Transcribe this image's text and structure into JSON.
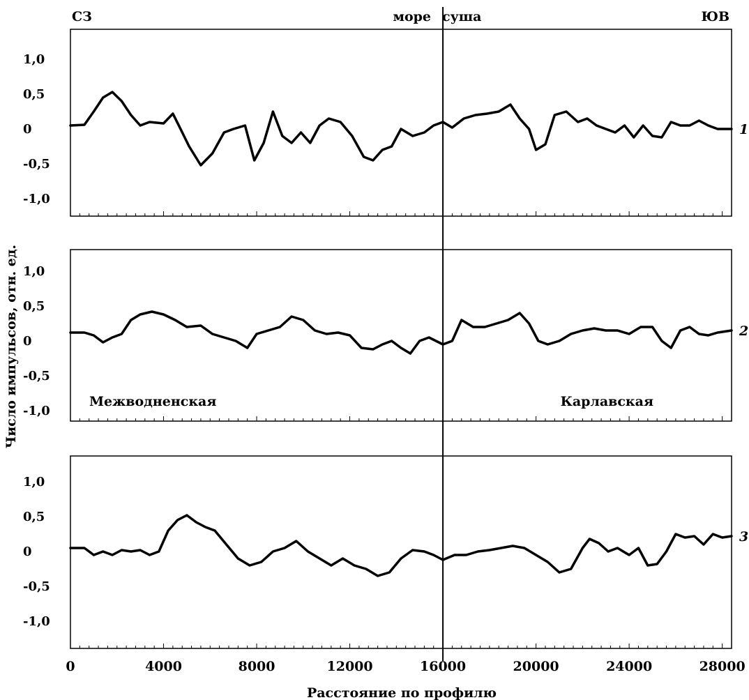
{
  "chart_data": {
    "type": "line",
    "ylabel": "Число импульсов, отн. ед.",
    "xlabel": "Расстояние по профилю",
    "xlim": [
      0,
      28400
    ],
    "x_ticks": [
      0,
      4000,
      8000,
      12000,
      16000,
      20000,
      24000,
      28000
    ],
    "x_tick_labels": [
      "0",
      "4000",
      "8000",
      "12000",
      "16000",
      "20000",
      "24000",
      "28000"
    ],
    "ylim": [
      -1.25,
      1.5
    ],
    "y_ticks": [
      1.0,
      0.5,
      0,
      -0.5,
      -1.0
    ],
    "y_tick_labels": [
      "1,0",
      "0,5",
      "0",
      "-0,5",
      "-1,0"
    ],
    "divider_x": 16000,
    "top_labels": {
      "left": "СЗ",
      "sea": "море",
      "land": "суша",
      "right": "ЮВ"
    },
    "panels": [
      {
        "series_label": "1",
        "annotations": [],
        "x": [
          0,
          600,
          1000,
          1400,
          1800,
          2200,
          2600,
          3000,
          3400,
          4000,
          4400,
          4700,
          5100,
          5600,
          6100,
          6600,
          7000,
          7500,
          7900,
          8300,
          8700,
          9100,
          9500,
          9900,
          10300,
          10700,
          11100,
          11600,
          12100,
          12600,
          13000,
          13400,
          13800,
          14200,
          14700,
          15200,
          15600,
          16000,
          16400,
          16900,
          17400,
          17900,
          18400,
          18900,
          19300,
          19700,
          20000,
          20400,
          20800,
          21300,
          21800,
          22200,
          22600,
          23000,
          23400,
          23800,
          24200,
          24600,
          25000,
          25400,
          25800,
          26200,
          26600,
          27000,
          27400,
          27800,
          28400
        ],
        "y": [
          0.05,
          0.06,
          0.25,
          0.45,
          0.53,
          0.4,
          0.2,
          0.05,
          0.1,
          0.08,
          0.22,
          0.02,
          -0.25,
          -0.52,
          -0.35,
          -0.05,
          0.0,
          0.05,
          -0.45,
          -0.2,
          0.25,
          -0.1,
          -0.2,
          -0.05,
          -0.2,
          0.05,
          0.15,
          0.1,
          -0.1,
          -0.4,
          -0.45,
          -0.3,
          -0.25,
          0.0,
          -0.1,
          -0.05,
          0.05,
          0.1,
          0.02,
          0.15,
          0.2,
          0.22,
          0.25,
          0.35,
          0.15,
          0.0,
          -0.3,
          -0.22,
          0.2,
          0.25,
          0.1,
          0.15,
          0.05,
          0.0,
          -0.05,
          0.05,
          -0.12,
          0.05,
          -0.1,
          -0.12,
          0.1,
          0.05,
          0.05,
          0.12,
          0.05,
          0.0,
          0.0
        ]
      },
      {
        "series_label": "2",
        "annotations": [
          "Межводненская",
          "Карлавская"
        ],
        "x": [
          0,
          600,
          1000,
          1400,
          1800,
          2200,
          2600,
          3000,
          3500,
          4000,
          4500,
          5000,
          5600,
          6100,
          6600,
          7100,
          7600,
          8000,
          8500,
          9000,
          9500,
          10000,
          10500,
          11000,
          11500,
          12000,
          12500,
          13000,
          13400,
          13800,
          14200,
          14600,
          15000,
          15400,
          16000,
          16400,
          16800,
          17300,
          17800,
          18300,
          18800,
          19300,
          19700,
          20100,
          20500,
          21000,
          21500,
          22000,
          22500,
          23000,
          23500,
          24000,
          24500,
          25000,
          25400,
          25800,
          26200,
          26600,
          27000,
          27400,
          27800,
          28400
        ],
        "y": [
          0.12,
          0.12,
          0.08,
          -0.02,
          0.05,
          0.1,
          0.3,
          0.38,
          0.42,
          0.38,
          0.3,
          0.2,
          0.22,
          0.1,
          0.05,
          0.0,
          -0.1,
          0.1,
          0.15,
          0.2,
          0.35,
          0.3,
          0.15,
          0.1,
          0.12,
          0.08,
          -0.1,
          -0.12,
          -0.05,
          0.0,
          -0.1,
          -0.18,
          0.0,
          0.05,
          -0.05,
          0.0,
          0.3,
          0.2,
          0.2,
          0.25,
          0.3,
          0.4,
          0.25,
          0.0,
          -0.05,
          0.0,
          0.1,
          0.15,
          0.18,
          0.15,
          0.15,
          0.1,
          0.2,
          0.2,
          0.0,
          -0.1,
          0.15,
          0.2,
          0.1,
          0.08,
          0.12,
          0.15
        ]
      },
      {
        "series_label": "3",
        "annotations": [],
        "x": [
          0,
          600,
          1000,
          1400,
          1800,
          2200,
          2600,
          3000,
          3400,
          3800,
          4200,
          4600,
          5000,
          5400,
          5800,
          6200,
          6700,
          7200,
          7700,
          8200,
          8700,
          9200,
          9700,
          10200,
          10700,
          11200,
          11700,
          12200,
          12700,
          13200,
          13700,
          14200,
          14700,
          15200,
          15600,
          16000,
          16500,
          17000,
          17500,
          18000,
          18500,
          19000,
          19500,
          20000,
          20500,
          21000,
          21500,
          22000,
          22300,
          22700,
          23100,
          23500,
          24000,
          24400,
          24800,
          25200,
          25600,
          26000,
          26400,
          26800,
          27200,
          27600,
          28000,
          28400
        ],
        "y": [
          0.05,
          0.05,
          -0.05,
          0.0,
          -0.05,
          0.02,
          0.0,
          0.02,
          -0.05,
          0.0,
          0.3,
          0.45,
          0.52,
          0.42,
          0.35,
          0.3,
          0.1,
          -0.1,
          -0.2,
          -0.15,
          0.0,
          0.05,
          0.15,
          0.0,
          -0.1,
          -0.2,
          -0.1,
          -0.2,
          -0.25,
          -0.35,
          -0.3,
          -0.1,
          0.02,
          0.0,
          -0.05,
          -0.12,
          -0.05,
          -0.05,
          0.0,
          0.02,
          0.05,
          0.08,
          0.05,
          -0.05,
          -0.15,
          -0.3,
          -0.25,
          0.05,
          0.18,
          0.12,
          0.0,
          0.05,
          -0.05,
          0.05,
          -0.2,
          -0.18,
          0.0,
          0.25,
          0.2,
          0.22,
          0.1,
          0.25,
          0.2,
          0.22
        ]
      }
    ]
  }
}
